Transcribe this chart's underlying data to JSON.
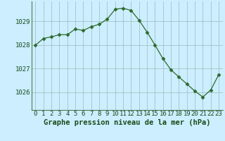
{
  "x": [
    0,
    1,
    2,
    3,
    4,
    5,
    6,
    7,
    8,
    9,
    10,
    11,
    12,
    13,
    14,
    15,
    16,
    17,
    18,
    19,
    20,
    21,
    22,
    23
  ],
  "y": [
    1028.0,
    1028.28,
    1028.35,
    1028.44,
    1028.44,
    1028.68,
    1028.62,
    1028.78,
    1028.88,
    1029.1,
    1029.52,
    1029.56,
    1029.47,
    1029.05,
    1028.55,
    1028.0,
    1027.42,
    1026.95,
    1026.65,
    1026.35,
    1026.05,
    1025.8,
    1026.1,
    1026.75
  ],
  "line_color": "#2d6a2d",
  "marker": "D",
  "marker_size": 2.5,
  "bg_color": "#cceeff",
  "grid_color": "#99bbbb",
  "spine_color": "#557755",
  "ylabel_ticks": [
    1026,
    1027,
    1028,
    1029
  ],
  "xlabel_label": "Graphe pression niveau de la mer (hPa)",
  "ylim": [
    1025.25,
    1029.85
  ],
  "xlim": [
    -0.5,
    23.5
  ],
  "tick_fontsize": 6.5,
  "xlabel_fontsize": 7.5,
  "text_color": "#1a4a1a"
}
